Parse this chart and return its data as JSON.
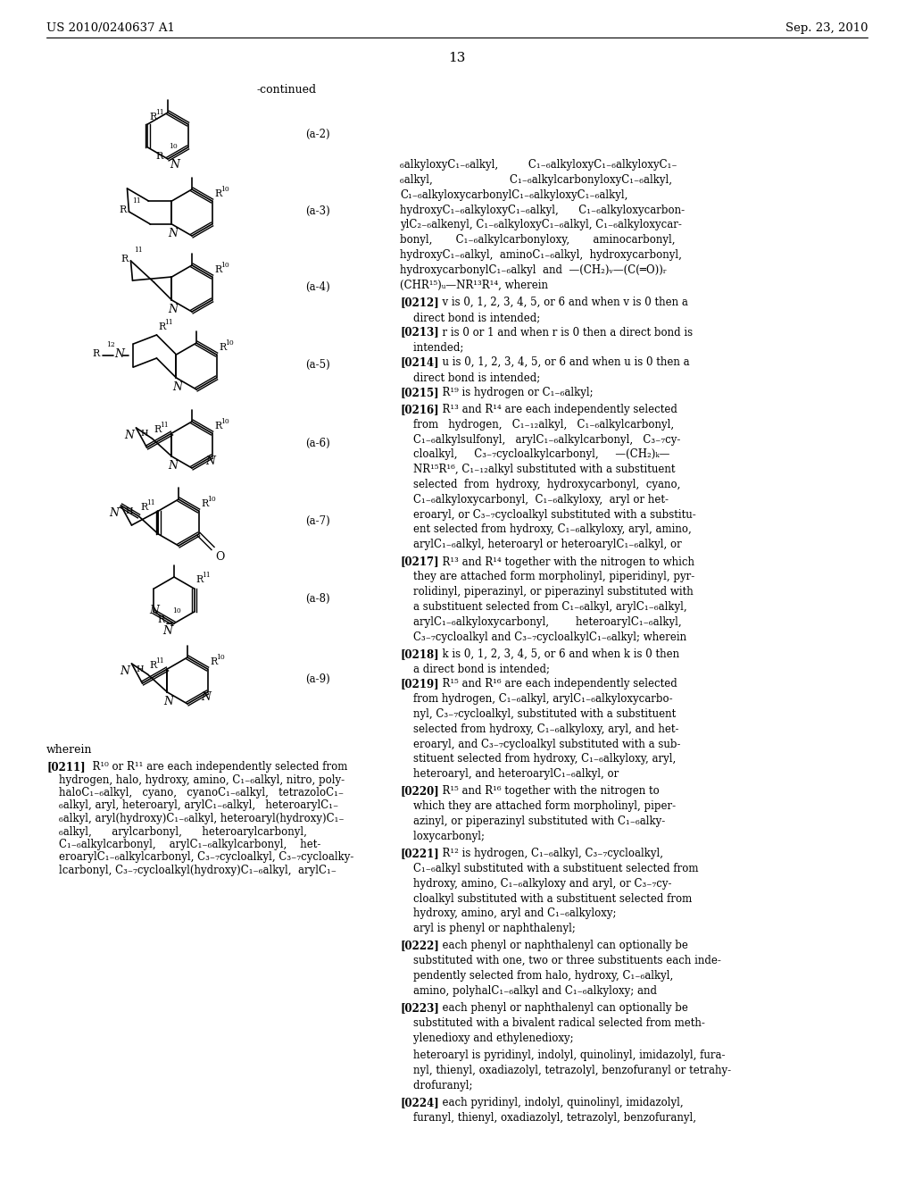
{
  "header_left": "US 2010/0240637 A1",
  "header_right": "Sep. 23, 2010",
  "page_number": "13",
  "background_color": "#ffffff"
}
